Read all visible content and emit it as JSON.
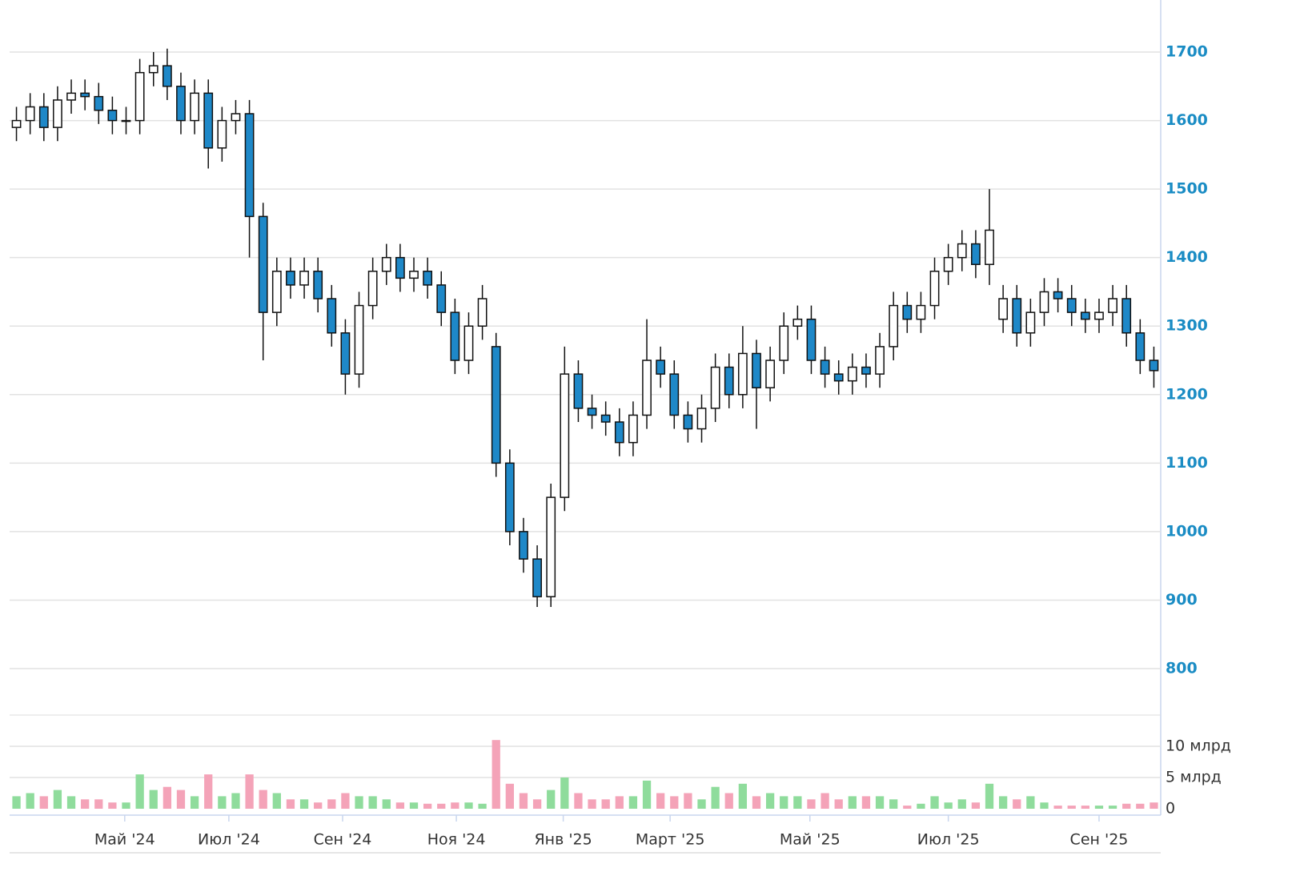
{
  "chart_data": {
    "type": "candlestick",
    "x": [
      0,
      1,
      2,
      3,
      4,
      5,
      6,
      7,
      8,
      9,
      10,
      11,
      12,
      13,
      14,
      15,
      16,
      17,
      18,
      19,
      20,
      21,
      22,
      23,
      24,
      25,
      26,
      27,
      28,
      29,
      30,
      31,
      32,
      33,
      34,
      35,
      36,
      37,
      38,
      39,
      40,
      41,
      42,
      43,
      44,
      45,
      46,
      47,
      48,
      49,
      50,
      51,
      52,
      53,
      54,
      55,
      56,
      57,
      58,
      59,
      60,
      61,
      62,
      63,
      64,
      65,
      66,
      67,
      68,
      69,
      70,
      71,
      72,
      73,
      74,
      75,
      76,
      77,
      78,
      79,
      80,
      81,
      82,
      83
    ],
    "xlim": [
      -0.5,
      83.5
    ],
    "xticks": [
      {
        "value": 7.9,
        "label": "Май '24"
      },
      {
        "value": 15.5,
        "label": "Июл '24"
      },
      {
        "value": 23.8,
        "label": "Сен '24"
      },
      {
        "value": 32.1,
        "label": "Ноя '24"
      },
      {
        "value": 39.9,
        "label": "Янв '25"
      },
      {
        "value": 47.7,
        "label": "Март '25"
      },
      {
        "value": 57.9,
        "label": "Май '25"
      },
      {
        "value": 68.0,
        "label": "Июл '25"
      },
      {
        "value": 79.0,
        "label": "Сен '25"
      }
    ],
    "open": [
      1590,
      1600,
      1620,
      1590,
      1630,
      1640,
      1635,
      1615,
      1600,
      1600,
      1670,
      1680,
      1650,
      1600,
      1640,
      1560,
      1600,
      1610,
      1460,
      1320,
      1380,
      1360,
      1380,
      1340,
      1290,
      1230,
      1330,
      1380,
      1400,
      1370,
      1380,
      1360,
      1320,
      1250,
      1300,
      1270,
      1100,
      1000,
      960,
      905,
      1050,
      1230,
      1180,
      1170,
      1160,
      1130,
      1170,
      1250,
      1230,
      1170,
      1150,
      1180,
      1240,
      1200,
      1260,
      1210,
      1250,
      1300,
      1310,
      1250,
      1230,
      1220,
      1240,
      1230,
      1270,
      1330,
      1310,
      1330,
      1380,
      1400,
      1420,
      1390,
      1310,
      1340,
      1290,
      1320,
      1350,
      1340,
      1320,
      1310,
      1320,
      1340,
      1290,
      1250
    ],
    "high": [
      1620,
      1640,
      1640,
      1650,
      1660,
      1660,
      1655,
      1635,
      1620,
      1690,
      1700,
      1705,
      1670,
      1660,
      1660,
      1620,
      1630,
      1630,
      1480,
      1400,
      1400,
      1400,
      1400,
      1360,
      1310,
      1350,
      1400,
      1420,
      1420,
      1400,
      1400,
      1380,
      1340,
      1320,
      1360,
      1290,
      1120,
      1020,
      980,
      1070,
      1270,
      1250,
      1200,
      1190,
      1180,
      1190,
      1310,
      1270,
      1250,
      1190,
      1200,
      1260,
      1260,
      1300,
      1280,
      1270,
      1320,
      1330,
      1330,
      1270,
      1250,
      1260,
      1260,
      1290,
      1350,
      1350,
      1350,
      1400,
      1420,
      1440,
      1440,
      1500,
      1360,
      1360,
      1340,
      1370,
      1370,
      1360,
      1340,
      1340,
      1360,
      1360,
      1310,
      1270
    ],
    "low": [
      1570,
      1580,
      1570,
      1570,
      1610,
      1615,
      1595,
      1580,
      1580,
      1580,
      1650,
      1630,
      1580,
      1580,
      1530,
      1540,
      1580,
      1400,
      1250,
      1300,
      1340,
      1340,
      1320,
      1270,
      1200,
      1210,
      1310,
      1360,
      1350,
      1350,
      1340,
      1300,
      1230,
      1230,
      1280,
      1080,
      980,
      940,
      890,
      890,
      1030,
      1160,
      1150,
      1140,
      1110,
      1110,
      1150,
      1210,
      1150,
      1130,
      1130,
      1160,
      1180,
      1180,
      1150,
      1190,
      1230,
      1280,
      1230,
      1210,
      1200,
      1200,
      1210,
      1210,
      1250,
      1290,
      1290,
      1310,
      1360,
      1380,
      1370,
      1360,
      1290,
      1270,
      1270,
      1300,
      1320,
      1300,
      1290,
      1290,
      1300,
      1270,
      1230,
      1210
    ],
    "close": [
      1600,
      1620,
      1590,
      1630,
      1640,
      1635,
      1615,
      1600,
      1600,
      1670,
      1680,
      1650,
      1600,
      1640,
      1560,
      1600,
      1610,
      1460,
      1320,
      1380,
      1360,
      1380,
      1340,
      1290,
      1230,
      1330,
      1380,
      1400,
      1370,
      1380,
      1360,
      1320,
      1250,
      1300,
      1340,
      1100,
      1000,
      960,
      905,
      1050,
      1230,
      1180,
      1170,
      1160,
      1130,
      1170,
      1250,
      1230,
      1170,
      1150,
      1180,
      1240,
      1200,
      1260,
      1210,
      1250,
      1300,
      1310,
      1250,
      1230,
      1220,
      1240,
      1230,
      1270,
      1330,
      1310,
      1330,
      1380,
      1400,
      1420,
      1390,
      1440,
      1340,
      1290,
      1320,
      1350,
      1340,
      1320,
      1310,
      1320,
      1340,
      1290,
      1250,
      1235
    ],
    "up_color": "#ffffff",
    "down_color": "#1e88c8",
    "ylim": [
      800,
      1776
    ],
    "yticks": [
      800,
      900,
      1000,
      1100,
      1200,
      1300,
      1400,
      1500,
      1600,
      1700
    ],
    "grid": true,
    "volume": {
      "values": [
        2,
        2.5,
        2,
        3,
        2,
        1.5,
        1.5,
        1,
        1,
        5.5,
        3,
        3.5,
        3,
        2,
        5.5,
        2,
        2.5,
        5.5,
        3,
        2.5,
        1.5,
        1.5,
        1,
        1.5,
        2.5,
        2,
        2,
        1.5,
        1,
        1,
        0.8,
        0.8,
        1,
        1,
        0.8,
        11,
        4,
        2.5,
        1.5,
        3,
        5,
        2.5,
        1.5,
        1.5,
        2,
        2,
        4.5,
        2.5,
        2,
        2.5,
        1.5,
        3.5,
        2.5,
        4,
        2,
        2.5,
        2,
        2,
        1.5,
        2.5,
        1.5,
        2,
        2,
        2,
        1.5,
        0.5,
        0.8,
        2,
        1,
        1.5,
        1,
        4,
        2,
        1.5,
        2,
        1,
        0.5,
        0.5,
        0.5,
        0.5,
        0.5,
        0.8,
        0.8,
        1
      ],
      "up_color": "#8fdc9c",
      "down_color": "#f4a3b8",
      "ylim": [
        0,
        15
      ],
      "yticks": [
        0,
        {
          "value": 5,
          "label": "5 млрд"
        },
        {
          "value": 10,
          "label": "10 млрд"
        }
      ]
    }
  }
}
